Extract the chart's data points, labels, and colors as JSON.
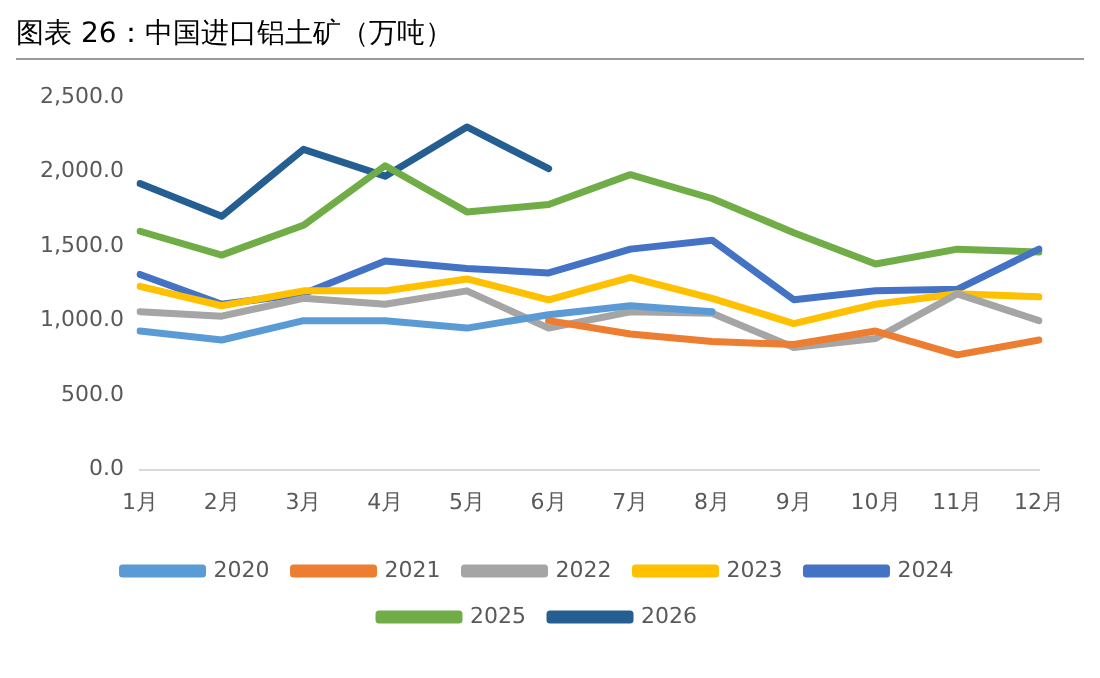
{
  "chart_data": {
    "type": "line",
    "title": "图表 26：中国进口铝土矿（万吨）",
    "categories": [
      "1月",
      "2月",
      "3月",
      "4月",
      "5月",
      "6月",
      "7月",
      "8月",
      "9月",
      "10月",
      "11月",
      "12月"
    ],
    "series": [
      {
        "name": "2020",
        "color": "#5b9bd5",
        "values": [
          930,
          870,
          1000,
          1000,
          950,
          1040,
          1100,
          1060,
          null,
          null,
          null,
          null
        ]
      },
      {
        "name": "2021",
        "color": "#ed7d31",
        "values": [
          null,
          null,
          null,
          null,
          null,
          1000,
          910,
          860,
          840,
          930,
          770,
          870
        ]
      },
      {
        "name": "2022",
        "color": "#a5a5a5",
        "values": [
          1060,
          1030,
          1150,
          1110,
          1200,
          950,
          1060,
          1050,
          820,
          880,
          1180,
          1000
        ]
      },
      {
        "name": "2023",
        "color": "#ffc000",
        "values": [
          1230,
          1100,
          1200,
          1200,
          1280,
          1140,
          1290,
          1150,
          980,
          1110,
          1180,
          1160
        ]
      },
      {
        "name": "2024",
        "color": "#4472c4",
        "values": [
          1310,
          1110,
          1180,
          1400,
          1350,
          1320,
          1480,
          1540,
          1140,
          1200,
          1210,
          1480
        ]
      },
      {
        "name": "2025",
        "color": "#70ad47",
        "values": [
          1600,
          1440,
          1640,
          2040,
          1730,
          1780,
          1980,
          1820,
          1590,
          1380,
          1480,
          1460
        ]
      },
      {
        "name": "2026",
        "color": "#255e91",
        "values": [
          1920,
          1700,
          2150,
          1970,
          2300,
          2020,
          null,
          null,
          null,
          null,
          null,
          null
        ]
      }
    ],
    "ylim": [
      0,
      2500
    ],
    "yticks": [
      {
        "value": 0,
        "label": "0.0"
      },
      {
        "value": 500,
        "label": "500.0"
      },
      {
        "value": 1000,
        "label": "1,000.0"
      },
      {
        "value": 1500,
        "label": "1,500.0"
      },
      {
        "value": 2000,
        "label": "2,000.0"
      },
      {
        "value": 2500,
        "label": "2,500.0"
      }
    ],
    "grid": false,
    "legend": "bottom",
    "marker": "none",
    "line_style": "solid"
  }
}
